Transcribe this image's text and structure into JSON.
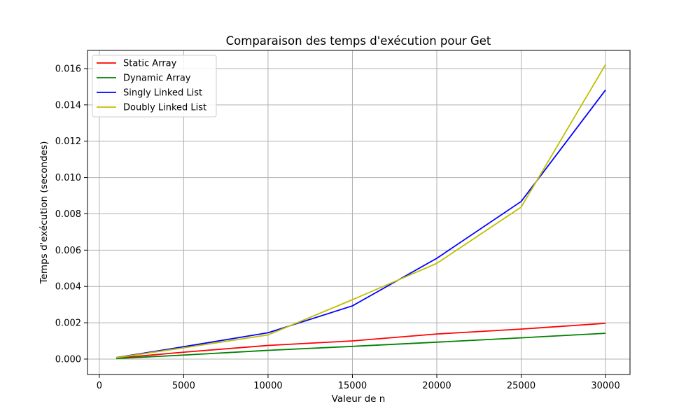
{
  "chart_data": {
    "type": "line",
    "title": "Comparaison des temps d'exécution pour Get",
    "xlabel": "Valeur de n",
    "ylabel": "Temps d'exécution (secondes)",
    "x": [
      1000,
      5000,
      10000,
      15000,
      20000,
      25000,
      30000
    ],
    "xlim": [
      -700,
      31450
    ],
    "ylim": [
      -0.00085,
      0.017
    ],
    "xticks": [
      0,
      5000,
      10000,
      15000,
      20000,
      25000,
      30000
    ],
    "xtick_labels": [
      "0",
      "5000",
      "10000",
      "15000",
      "20000",
      "25000",
      "30000"
    ],
    "yticks": [
      0,
      0.002,
      0.004,
      0.006,
      0.008,
      0.01,
      0.012,
      0.014,
      0.016
    ],
    "ytick_labels": [
      "0.000",
      "0.002",
      "0.004",
      "0.006",
      "0.008",
      "0.010",
      "0.012",
      "0.014",
      "0.016"
    ],
    "grid": true,
    "legend_position": "top-left",
    "series": [
      {
        "name": "Static Array",
        "color": "#ff0000",
        "values": [
          5e-05,
          0.00038,
          0.00075,
          0.001,
          0.00138,
          0.00165,
          0.00197
        ]
      },
      {
        "name": "Dynamic Array",
        "color": "#008000",
        "values": [
          3e-05,
          0.00022,
          0.00048,
          0.0007,
          0.00093,
          0.00117,
          0.00142
        ]
      },
      {
        "name": "Singly Linked List",
        "color": "#0000ff",
        "values": [
          8e-05,
          0.00068,
          0.00145,
          0.00293,
          0.00555,
          0.00868,
          0.01482
        ]
      },
      {
        "name": "Doubly Linked List",
        "color": "#bfbf00",
        "values": [
          7e-05,
          0.00062,
          0.00133,
          0.00327,
          0.00527,
          0.00837,
          0.01622
        ]
      }
    ]
  }
}
